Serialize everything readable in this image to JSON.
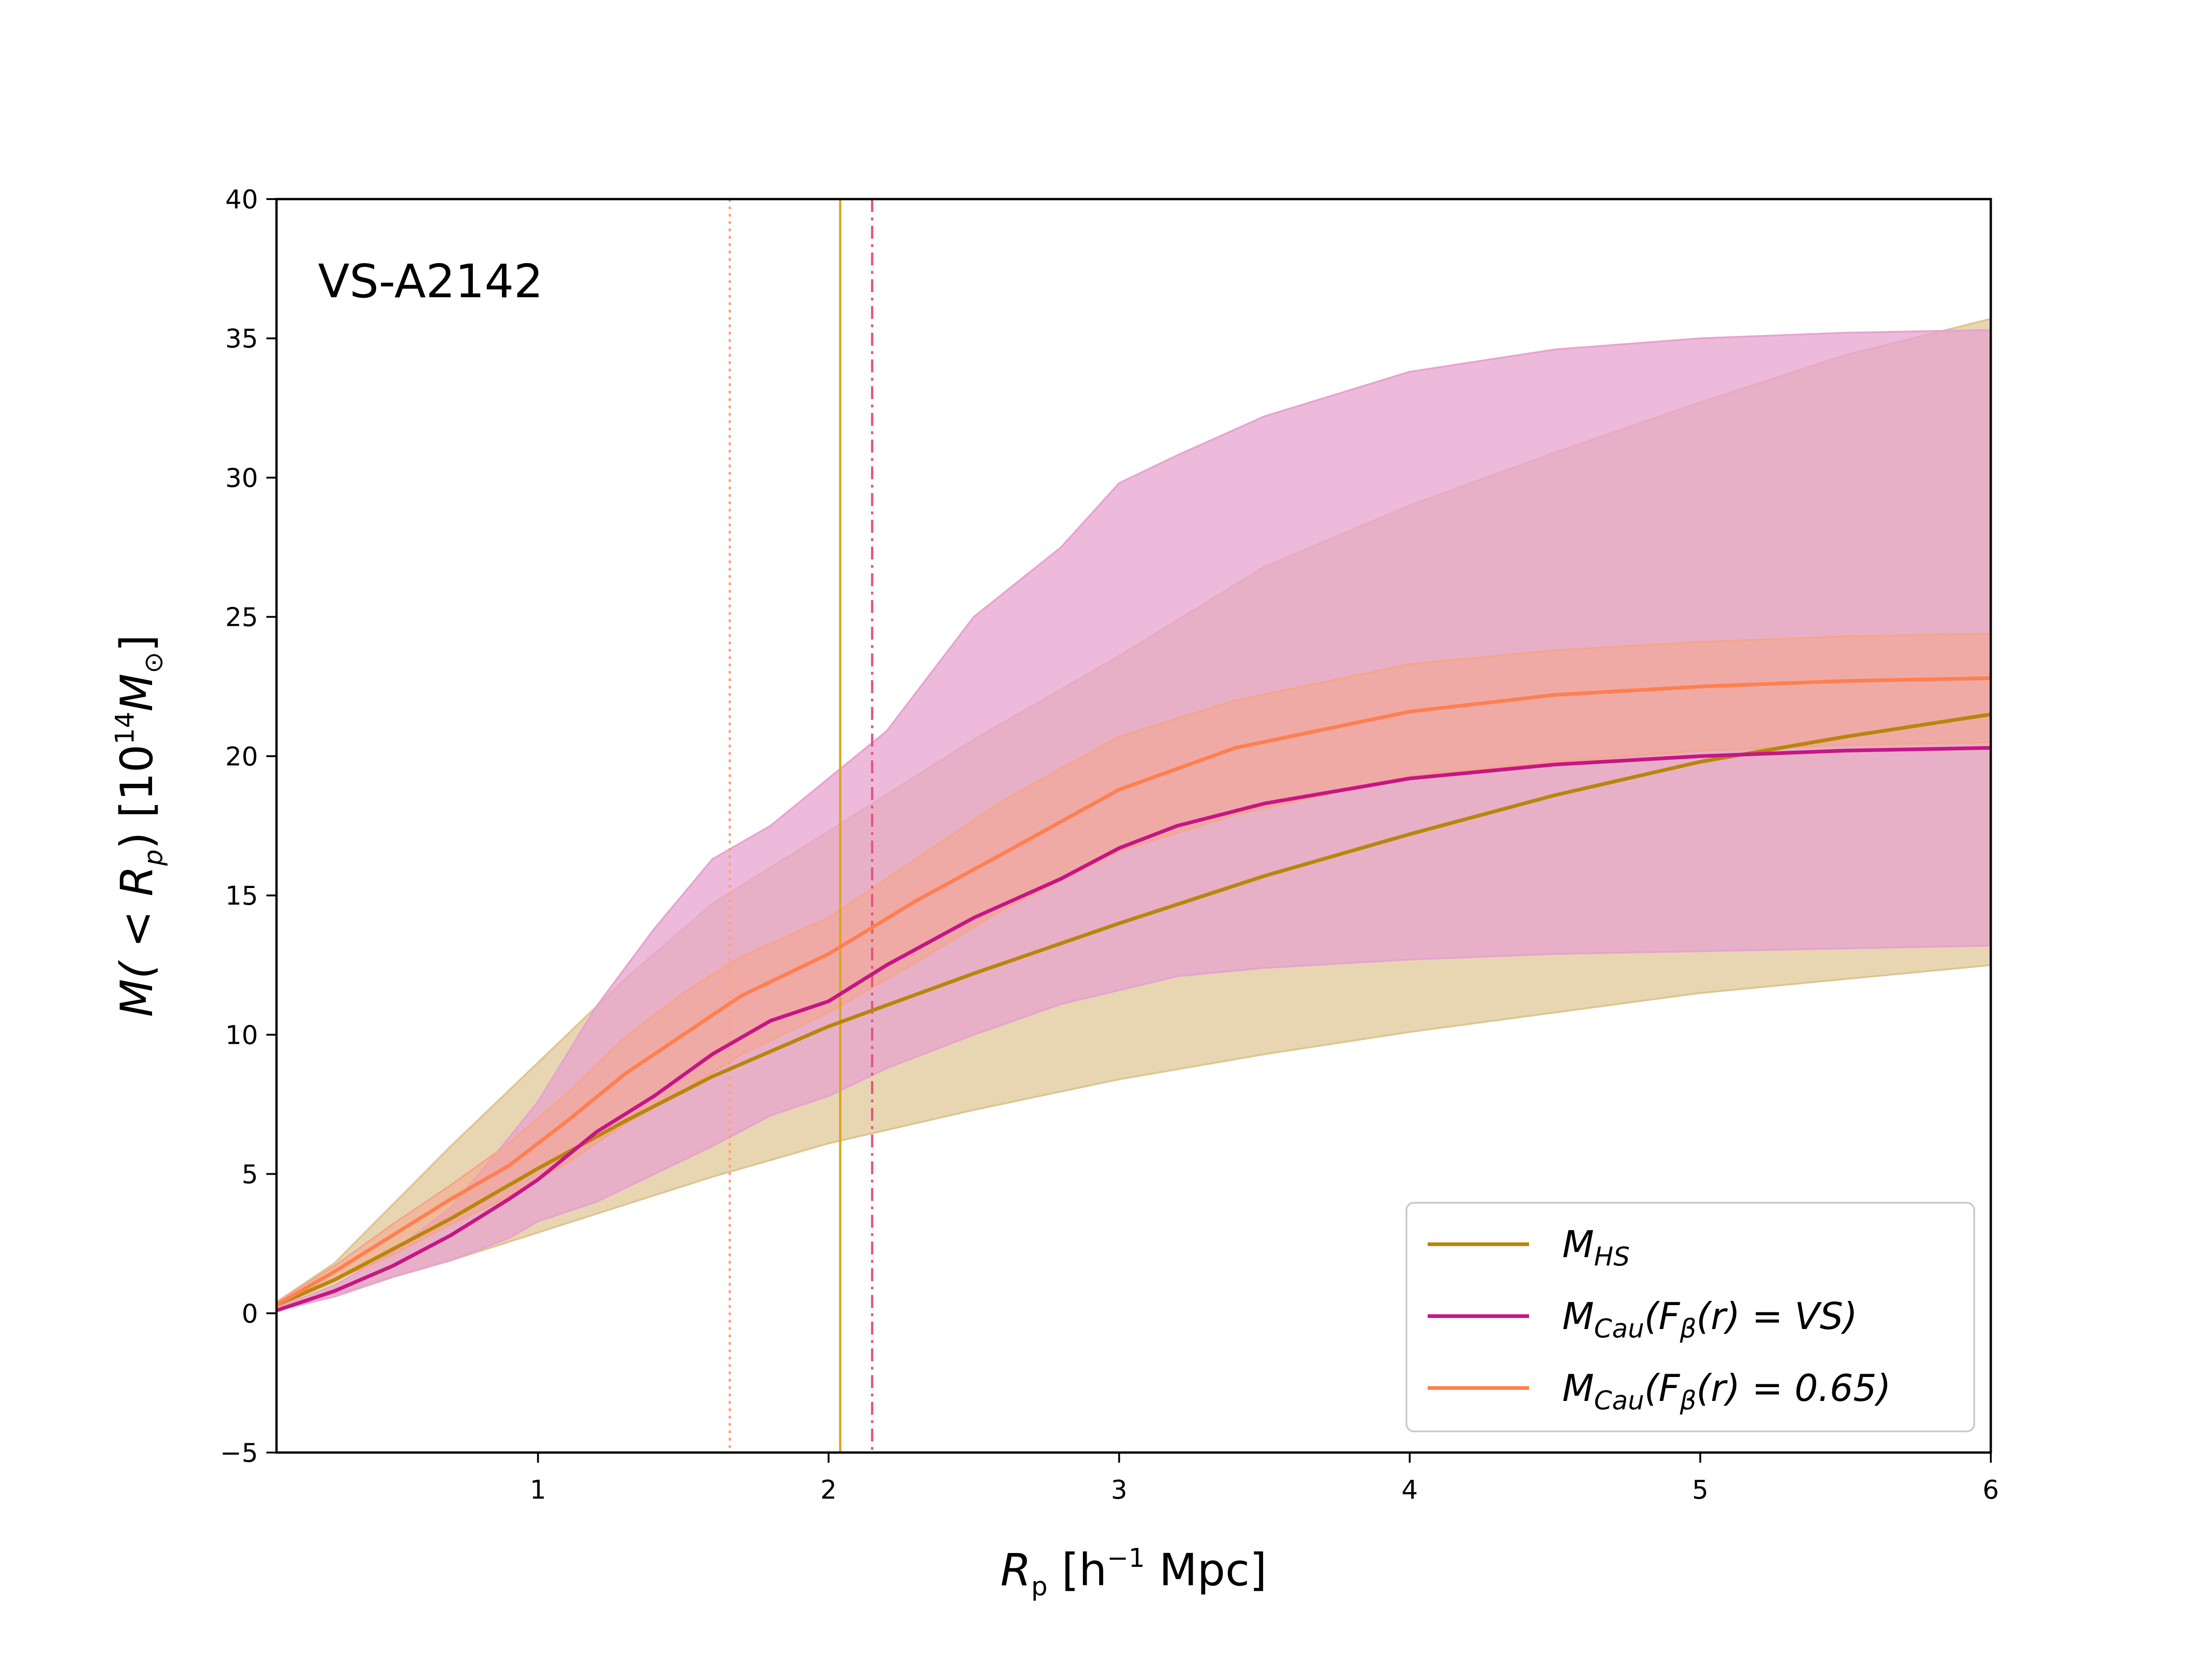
{
  "chart_data": {
    "type": "line",
    "annotation": "VS-A2142",
    "xlabel": {
      "main": "R",
      "sub": "p",
      "unit_pre": " [h",
      "unit_sup": "−1",
      "unit_post": " Mpc]"
    },
    "ylabel": {
      "main": "M( < R",
      "sub": "p",
      "mid": ") [10",
      "sup": "14",
      "post": "M",
      "post_sub": "⊙",
      "end": "]"
    },
    "xlim": [
      0.1,
      6
    ],
    "ylim": [
      -5,
      40
    ],
    "xticks": [
      1,
      2,
      3,
      4,
      5,
      6
    ],
    "xtick_labels": [
      "1",
      "2",
      "3",
      "4",
      "5",
      "6"
    ],
    "yticks": [
      -5,
      0,
      5,
      10,
      15,
      20,
      25,
      30,
      35,
      40
    ],
    "ytick_labels": [
      "−5",
      "0",
      "5",
      "10",
      "15",
      "20",
      "25",
      "30",
      "35",
      "40"
    ],
    "series": [
      {
        "key": "hs",
        "legend_main": "M",
        "legend_sub": "HS",
        "legend_rest": "",
        "color": "#b8860b",
        "x": [
          0.1,
          0.3,
          0.5,
          0.7,
          1.0,
          1.3,
          1.6,
          2.0,
          2.5,
          3.0,
          3.5,
          4.0,
          4.5,
          5.0,
          5.5,
          6.0
        ],
        "y": [
          0.3,
          1.2,
          2.3,
          3.4,
          5.2,
          6.9,
          8.5,
          10.3,
          12.2,
          14.0,
          15.7,
          17.2,
          18.6,
          19.8,
          20.7,
          21.5
        ],
        "lower": [
          0.2,
          0.7,
          1.3,
          1.9,
          2.9,
          3.9,
          4.9,
          6.1,
          7.3,
          8.4,
          9.3,
          10.1,
          10.8,
          11.5,
          12.0,
          12.5
        ],
        "upper": [
          0.4,
          1.8,
          3.9,
          6.0,
          9.0,
          12.0,
          14.7,
          17.3,
          20.6,
          23.6,
          26.8,
          29.0,
          30.9,
          32.7,
          34.4,
          35.7
        ]
      },
      {
        "key": "vs",
        "legend_main": "M",
        "legend_sub": "Cau",
        "legend_rest": "(F",
        "legend_beta": "β",
        "legend_tail": "(r) = VS)",
        "color": "#c71585",
        "x": [
          0.1,
          0.3,
          0.5,
          0.7,
          0.9,
          1.0,
          1.2,
          1.4,
          1.6,
          1.8,
          2.0,
          2.2,
          2.5,
          2.8,
          3.0,
          3.2,
          3.5,
          4.0,
          4.5,
          5.0,
          5.5,
          6.0
        ],
        "y": [
          0.1,
          0.8,
          1.7,
          2.8,
          4.1,
          4.8,
          6.5,
          7.8,
          9.3,
          10.5,
          11.2,
          12.5,
          14.2,
          15.6,
          16.7,
          17.5,
          18.3,
          19.2,
          19.7,
          20.0,
          20.2,
          20.3
        ],
        "lower": [
          0.1,
          0.6,
          1.3,
          1.9,
          2.7,
          3.3,
          4.0,
          5.0,
          6.0,
          7.1,
          7.8,
          8.8,
          10.0,
          11.1,
          11.6,
          12.1,
          12.4,
          12.7,
          12.9,
          13.0,
          13.1,
          13.2
        ],
        "upper": [
          0.2,
          1.0,
          2.2,
          3.8,
          6.3,
          7.6,
          11.0,
          13.8,
          16.3,
          17.5,
          19.2,
          20.9,
          25.0,
          27.5,
          29.8,
          30.8,
          32.2,
          33.8,
          34.6,
          35.0,
          35.2,
          35.3
        ]
      },
      {
        "key": "b065",
        "legend_main": "M",
        "legend_sub": "Cau",
        "legend_rest": "(F",
        "legend_beta": "β",
        "legend_tail": "(r) = 0.65)",
        "color": "#ff7f50",
        "x": [
          0.1,
          0.3,
          0.5,
          0.7,
          0.9,
          1.1,
          1.3,
          1.5,
          1.7,
          2.0,
          2.3,
          2.6,
          3.0,
          3.4,
          4.0,
          4.5,
          5.0,
          5.5,
          6.0
        ],
        "y": [
          0.3,
          1.5,
          2.8,
          4.1,
          5.3,
          6.9,
          8.6,
          10.0,
          11.4,
          12.9,
          14.8,
          16.5,
          18.8,
          20.3,
          21.6,
          22.2,
          22.5,
          22.7,
          22.8
        ],
        "lower": [
          0.2,
          1.2,
          2.1,
          3.2,
          4.2,
          5.4,
          6.8,
          8.0,
          9.3,
          10.8,
          12.6,
          14.5,
          16.6,
          17.9,
          19.3,
          19.8,
          20.2,
          20.4,
          20.5
        ],
        "upper": [
          0.4,
          1.7,
          3.2,
          4.6,
          6.1,
          7.9,
          9.9,
          11.5,
          12.8,
          14.2,
          16.3,
          18.4,
          20.7,
          22.0,
          23.3,
          23.8,
          24.1,
          24.3,
          24.4
        ]
      }
    ],
    "vlines": [
      {
        "key": "hs",
        "x": 2.04,
        "style": "solid",
        "color": "#daa520"
      },
      {
        "key": "vs",
        "x": 2.15,
        "style": "dashdot",
        "color": "#e75480"
      },
      {
        "key": "b065",
        "x": 1.66,
        "style": "dotted",
        "color": "#ffa07a"
      }
    ],
    "band_colors": {
      "hs": "#ddc590",
      "vs": "#e7a3cf",
      "b065": "#f5a58a"
    },
    "legend_position": "lower-right"
  }
}
